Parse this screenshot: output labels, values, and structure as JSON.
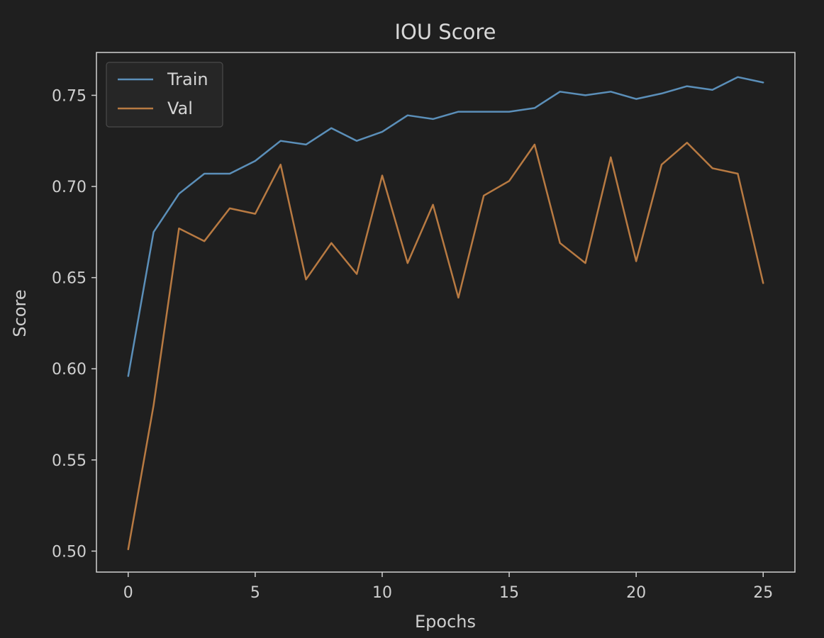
{
  "chart_data": {
    "type": "line",
    "title": "IOU Score",
    "xlabel": "Epochs",
    "ylabel": "Score",
    "xlim": [
      -1.25,
      26.25
    ],
    "ylim": [
      0.4885,
      0.7735
    ],
    "xticks": [
      0,
      5,
      10,
      15,
      20,
      25
    ],
    "yticks": [
      0.5,
      0.55,
      0.6,
      0.65,
      0.7,
      0.75
    ],
    "x": [
      0,
      1,
      2,
      3,
      4,
      5,
      6,
      7,
      8,
      9,
      10,
      11,
      12,
      13,
      14,
      15,
      16,
      17,
      18,
      19,
      20,
      21,
      22,
      23,
      24,
      25
    ],
    "grid": false,
    "legend_position": "upper-left",
    "series": [
      {
        "name": "Train",
        "color": "#5b8fb9",
        "values": [
          0.596,
          0.675,
          0.696,
          0.707,
          0.707,
          0.714,
          0.725,
          0.723,
          0.732,
          0.725,
          0.73,
          0.739,
          0.737,
          0.741,
          0.741,
          0.741,
          0.743,
          0.752,
          0.75,
          0.752,
          0.748,
          0.751,
          0.755,
          0.753,
          0.76,
          0.757
        ]
      },
      {
        "name": "Val",
        "color": "#b87a42",
        "values": [
          0.501,
          0.58,
          0.677,
          0.67,
          0.688,
          0.685,
          0.712,
          0.649,
          0.669,
          0.652,
          0.706,
          0.658,
          0.69,
          0.639,
          0.695,
          0.703,
          0.723,
          0.669,
          0.658,
          0.716,
          0.659,
          0.712,
          0.724,
          0.71,
          0.707,
          0.647
        ]
      }
    ]
  }
}
